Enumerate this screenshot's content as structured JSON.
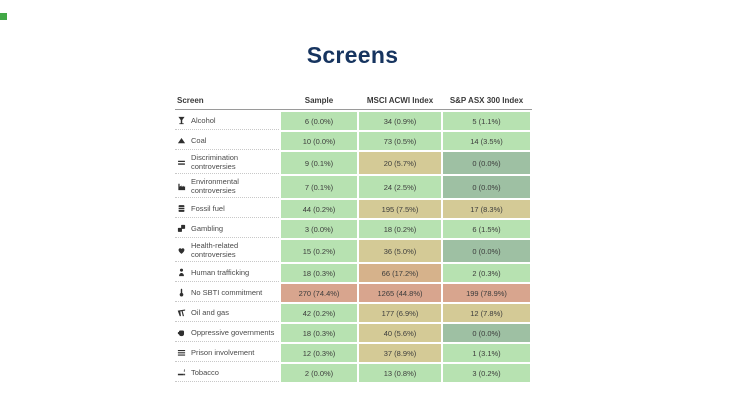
{
  "accent_color": "#42a846",
  "title": "Screens",
  "title_color": "#16345f",
  "table": {
    "headers": [
      "Screen",
      "Sample",
      "MSCI ACWI Index",
      "S&P ASX 300 Index"
    ],
    "palette": {
      "green": "#b7e2b1",
      "khaki": "#d4ca96",
      "tan": "#d6b28b",
      "salmon": "#d8a58e",
      "gray_green": "#9ec0a3"
    },
    "rows": [
      {
        "icon": "cocktail-glass-icon",
        "label": "Alcohol",
        "cells": [
          {
            "text": "6 (0.0%)",
            "color": "green"
          },
          {
            "text": "34 (0.9%)",
            "color": "green"
          },
          {
            "text": "5 (1.1%)",
            "color": "green"
          }
        ]
      },
      {
        "icon": "coal-pile-icon",
        "label": "Coal",
        "cells": [
          {
            "text": "10 (0.0%)",
            "color": "green"
          },
          {
            "text": "73 (0.5%)",
            "color": "green"
          },
          {
            "text": "14 (3.5%)",
            "color": "green"
          }
        ]
      },
      {
        "icon": "unequal-bars-icon",
        "label": "Discrimination controversies",
        "cells": [
          {
            "text": "9 (0.1%)",
            "color": "green"
          },
          {
            "text": "20 (5.7%)",
            "color": "khaki"
          },
          {
            "text": "0 (0.0%)",
            "color": "gray_green"
          }
        ]
      },
      {
        "icon": "factory-icon",
        "label": "Environmental controversies",
        "cells": [
          {
            "text": "7 (0.1%)",
            "color": "green"
          },
          {
            "text": "24 (2.5%)",
            "color": "green"
          },
          {
            "text": "0 (0.0%)",
            "color": "gray_green"
          }
        ]
      },
      {
        "icon": "oil-barrel-icon",
        "label": "Fossil fuel",
        "cells": [
          {
            "text": "44 (0.2%)",
            "color": "green"
          },
          {
            "text": "195 (7.5%)",
            "color": "khaki"
          },
          {
            "text": "17 (8.3%)",
            "color": "khaki"
          }
        ]
      },
      {
        "icon": "dice-icon",
        "label": "Gambling",
        "cells": [
          {
            "text": "3 (0.0%)",
            "color": "green"
          },
          {
            "text": "18 (0.2%)",
            "color": "green"
          },
          {
            "text": "6 (1.5%)",
            "color": "green"
          }
        ]
      },
      {
        "icon": "heart-icon",
        "label": "Health-related controversies",
        "cells": [
          {
            "text": "15 (0.2%)",
            "color": "green"
          },
          {
            "text": "36 (5.0%)",
            "color": "khaki"
          },
          {
            "text": "0 (0.0%)",
            "color": "gray_green"
          }
        ]
      },
      {
        "icon": "person-icon",
        "label": "Human trafficking",
        "cells": [
          {
            "text": "18 (0.3%)",
            "color": "green"
          },
          {
            "text": "66 (17.2%)",
            "color": "tan"
          },
          {
            "text": "2 (0.3%)",
            "color": "green"
          }
        ]
      },
      {
        "icon": "thermometer-icon",
        "label": "No SBTI commitment",
        "cells": [
          {
            "text": "270 (74.4%)",
            "color": "salmon"
          },
          {
            "text": "1265 (44.8%)",
            "color": "salmon"
          },
          {
            "text": "199 (78.9%)",
            "color": "salmon"
          }
        ]
      },
      {
        "icon": "oil-pumpjack-icon",
        "label": "Oil and gas",
        "cells": [
          {
            "text": "42 (0.2%)",
            "color": "green"
          },
          {
            "text": "177 (6.9%)",
            "color": "khaki"
          },
          {
            "text": "12 (7.8%)",
            "color": "khaki"
          }
        ]
      },
      {
        "icon": "fist-icon",
        "label": "Oppressive governments",
        "cells": [
          {
            "text": "18 (0.3%)",
            "color": "green"
          },
          {
            "text": "40 (5.6%)",
            "color": "khaki"
          },
          {
            "text": "0 (0.0%)",
            "color": "gray_green"
          }
        ]
      },
      {
        "icon": "prison-bars-icon",
        "label": "Prison involvement",
        "cells": [
          {
            "text": "12 (0.3%)",
            "color": "green"
          },
          {
            "text": "37 (8.9%)",
            "color": "khaki"
          },
          {
            "text": "1 (3.1%)",
            "color": "green"
          }
        ]
      },
      {
        "icon": "cigarette-icon",
        "label": "Tobacco",
        "cells": [
          {
            "text": "2 (0.0%)",
            "color": "green"
          },
          {
            "text": "13 (0.8%)",
            "color": "green"
          },
          {
            "text": "3 (0.2%)",
            "color": "green"
          }
        ]
      }
    ]
  },
  "chart_data": {
    "type": "heatmap",
    "title": "Screens",
    "columns": [
      "Sample",
      "MSCI ACWI Index",
      "S&P ASX 300 Index"
    ],
    "legend_position": "none",
    "rows": [
      {
        "screen": "Alcohol",
        "sample_count": 6,
        "sample_pct": 0.0,
        "msci_count": 34,
        "msci_pct": 0.9,
        "asx_count": 5,
        "asx_pct": 1.1
      },
      {
        "screen": "Coal",
        "sample_count": 10,
        "sample_pct": 0.0,
        "msci_count": 73,
        "msci_pct": 0.5,
        "asx_count": 14,
        "asx_pct": 3.5
      },
      {
        "screen": "Discrimination controversies",
        "sample_count": 9,
        "sample_pct": 0.1,
        "msci_count": 20,
        "msci_pct": 5.7,
        "asx_count": 0,
        "asx_pct": 0.0
      },
      {
        "screen": "Environmental controversies",
        "sample_count": 7,
        "sample_pct": 0.1,
        "msci_count": 24,
        "msci_pct": 2.5,
        "asx_count": 0,
        "asx_pct": 0.0
      },
      {
        "screen": "Fossil fuel",
        "sample_count": 44,
        "sample_pct": 0.2,
        "msci_count": 195,
        "msci_pct": 7.5,
        "asx_count": 17,
        "asx_pct": 8.3
      },
      {
        "screen": "Gambling",
        "sample_count": 3,
        "sample_pct": 0.0,
        "msci_count": 18,
        "msci_pct": 0.2,
        "asx_count": 6,
        "asx_pct": 1.5
      },
      {
        "screen": "Health-related controversies",
        "sample_count": 15,
        "sample_pct": 0.2,
        "msci_count": 36,
        "msci_pct": 5.0,
        "asx_count": 0,
        "asx_pct": 0.0
      },
      {
        "screen": "Human trafficking",
        "sample_count": 18,
        "sample_pct": 0.3,
        "msci_count": 66,
        "msci_pct": 17.2,
        "asx_count": 2,
        "asx_pct": 0.3
      },
      {
        "screen": "No SBTI commitment",
        "sample_count": 270,
        "sample_pct": 74.4,
        "msci_count": 1265,
        "msci_pct": 44.8,
        "asx_count": 199,
        "asx_pct": 78.9
      },
      {
        "screen": "Oil and gas",
        "sample_count": 42,
        "sample_pct": 0.2,
        "msci_count": 177,
        "msci_pct": 6.9,
        "asx_count": 12,
        "asx_pct": 7.8
      },
      {
        "screen": "Oppressive governments",
        "sample_count": 18,
        "sample_pct": 0.3,
        "msci_count": 40,
        "msci_pct": 5.6,
        "asx_count": 0,
        "asx_pct": 0.0
      },
      {
        "screen": "Prison involvement",
        "sample_count": 12,
        "sample_pct": 0.3,
        "msci_count": 37,
        "msci_pct": 8.9,
        "asx_count": 1,
        "asx_pct": 3.1
      },
      {
        "screen": "Tobacco",
        "sample_count": 2,
        "sample_pct": 0.0,
        "msci_count": 13,
        "msci_pct": 0.8,
        "asx_count": 3,
        "asx_pct": 0.2
      }
    ],
    "color_coding": "green = low exposure, khaki/tan = medium, salmon = high, gray-green = zero holdings"
  }
}
